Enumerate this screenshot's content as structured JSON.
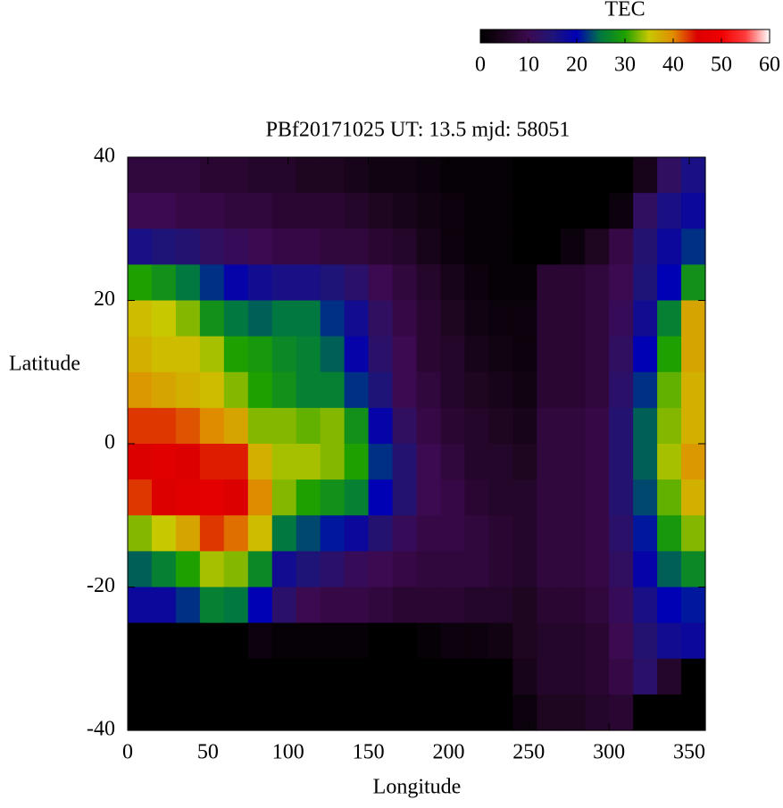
{
  "chart_data": {
    "type": "heatmap",
    "title": "PBf20171025  UT: 13.5  mjd: 58051",
    "xlabel": "Longitude",
    "ylabel": "Latitude",
    "zlabel": "TEC",
    "x": [
      7.5,
      22.5,
      37.5,
      52.5,
      67.5,
      82.5,
      97.5,
      112.5,
      127.5,
      142.5,
      157.5,
      172.5,
      187.5,
      202.5,
      217.5,
      232.5,
      247.5,
      262.5,
      277.5,
      292.5,
      307.5,
      322.5,
      337.5,
      352.5
    ],
    "y": [
      37.5,
      32.5,
      27.5,
      22.5,
      17.5,
      12.5,
      7.5,
      2.5,
      -2.5,
      -7.5,
      -12.5,
      -17.5,
      -22.5,
      -27.5,
      -32.5,
      -37.5
    ],
    "z": [
      [
        8,
        8,
        8,
        7,
        7,
        6,
        6,
        5,
        5,
        4,
        3,
        3,
        2,
        1,
        1,
        1,
        0,
        0,
        0,
        0,
        0,
        4,
        12,
        16
      ],
      [
        10,
        10,
        9,
        9,
        8,
        8,
        7,
        7,
        7,
        6,
        5,
        4,
        3,
        2,
        1,
        1,
        0,
        0,
        0,
        0,
        2,
        12,
        16,
        18
      ],
      [
        16,
        15,
        14,
        12,
        11,
        10,
        9,
        9,
        8,
        8,
        7,
        6,
        4,
        2,
        1,
        1,
        0,
        0,
        2,
        5,
        9,
        14,
        18,
        22
      ],
      [
        30,
        28,
        25,
        22,
        19,
        17,
        16,
        16,
        15,
        13,
        10,
        8,
        6,
        4,
        2,
        1,
        1,
        7,
        7,
        8,
        10,
        15,
        20,
        28
      ],
      [
        36,
        35,
        33,
        28,
        25,
        24,
        25,
        25,
        22,
        17,
        12,
        9,
        7,
        5,
        3,
        2,
        2,
        7,
        7,
        8,
        11,
        17,
        26,
        38
      ],
      [
        37,
        36,
        36,
        34,
        30,
        29,
        27,
        26,
        24,
        19,
        13,
        10,
        7,
        6,
        4,
        3,
        2,
        7,
        7,
        8,
        12,
        20,
        30,
        38
      ],
      [
        39,
        38,
        37,
        36,
        33,
        30,
        28,
        26,
        26,
        22,
        15,
        10,
        8,
        6,
        5,
        4,
        3,
        7,
        7,
        8,
        13,
        22,
        32,
        37
      ],
      [
        43,
        43,
        42,
        40,
        38,
        33,
        33,
        32,
        33,
        28,
        19,
        12,
        9,
        7,
        6,
        5,
        4,
        8,
        8,
        9,
        14,
        24,
        33,
        37
      ],
      [
        45,
        46,
        45,
        44,
        44,
        37,
        34,
        34,
        33,
        30,
        22,
        14,
        10,
        8,
        6,
        6,
        5,
        8,
        8,
        9,
        14,
        24,
        34,
        39
      ],
      [
        43,
        45,
        46,
        47,
        45,
        40,
        33,
        30,
        28,
        26,
        20,
        14,
        10,
        9,
        7,
        6,
        6,
        8,
        8,
        9,
        14,
        23,
        32,
        37
      ],
      [
        33,
        35,
        38,
        43,
        41,
        36,
        25,
        23,
        21,
        18,
        14,
        11,
        9,
        9,
        8,
        7,
        6,
        8,
        8,
        9,
        13,
        21,
        29,
        33
      ],
      [
        24,
        26,
        30,
        34,
        33,
        27,
        17,
        15,
        13,
        11,
        10,
        9,
        8,
        8,
        8,
        7,
        6,
        8,
        8,
        9,
        12,
        19,
        24,
        27
      ],
      [
        18,
        18,
        22,
        26,
        25,
        20,
        13,
        10,
        9,
        9,
        8,
        7,
        7,
        7,
        6,
        6,
        5,
        7,
        7,
        8,
        11,
        16,
        20,
        21
      ],
      [
        0,
        0,
        0,
        0,
        0,
        2,
        1,
        1,
        1,
        1,
        0,
        0,
        1,
        2,
        2,
        3,
        5,
        6,
        6,
        7,
        10,
        14,
        17,
        18
      ],
      [
        0,
        0,
        0,
        0,
        0,
        0,
        0,
        0,
        0,
        0,
        0,
        0,
        0,
        0,
        0,
        0,
        4,
        6,
        6,
        7,
        9,
        13,
        6,
        0
      ],
      [
        0,
        0,
        0,
        0,
        0,
        0,
        0,
        0,
        0,
        0,
        0,
        0,
        0,
        0,
        0,
        0,
        2,
        5,
        5,
        6,
        7,
        0,
        0,
        0
      ]
    ],
    "xlim": [
      0,
      360
    ],
    "xticks": [
      0,
      50,
      100,
      150,
      200,
      250,
      300,
      350
    ],
    "ylim": [
      -40,
      40
    ],
    "yticks": [
      -40,
      -20,
      0,
      20,
      40
    ],
    "zlim": [
      0,
      60
    ],
    "zticks": [
      0,
      10,
      20,
      30,
      40,
      50,
      60
    ],
    "colorscale": [
      "#000000",
      "#1e0520",
      "#3c0a50",
      "#1e1478",
      "#0000b4",
      "#007840",
      "#1ea000",
      "#c8c800",
      "#e08c00",
      "#dc0000",
      "#f00000",
      "#ff3c3c",
      "#ffffff"
    ]
  }
}
